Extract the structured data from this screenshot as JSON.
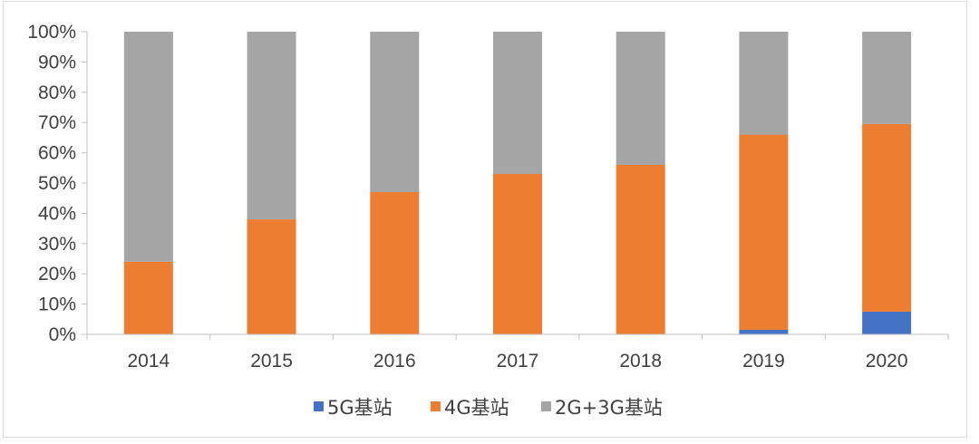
{
  "chart_data": {
    "type": "bar",
    "stacked": true,
    "percent_stacked": true,
    "categories": [
      "2014",
      "2015",
      "2016",
      "2017",
      "2018",
      "2019",
      "2020"
    ],
    "series": [
      {
        "name": "5G基站",
        "color": "#4472c4",
        "values": [
          0,
          0,
          0,
          0,
          0,
          1.5,
          7.5
        ]
      },
      {
        "name": "4G基站",
        "color": "#ed7d31",
        "values": [
          24,
          38,
          47,
          53,
          56,
          64.5,
          62
        ]
      },
      {
        "name": "2G+3G基站",
        "color": "#a5a5a5",
        "values": [
          76,
          62,
          53,
          47,
          44,
          34,
          30.5
        ]
      }
    ],
    "y_ticks": [
      "0%",
      "10%",
      "20%",
      "30%",
      "40%",
      "50%",
      "60%",
      "70%",
      "80%",
      "90%",
      "100%"
    ],
    "ylim": [
      0,
      100
    ],
    "grid": false,
    "legend_position": "bottom"
  }
}
